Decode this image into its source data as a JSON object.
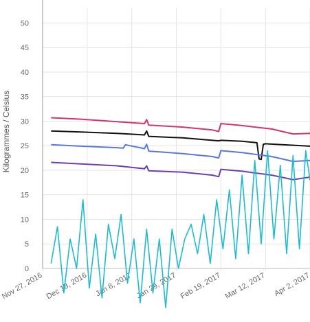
{
  "chart_data": {
    "type": "line",
    "ylabel": "Kilogrammes  / Celsius",
    "ylim": [
      0,
      53
    ],
    "yticks": [
      0,
      5,
      10,
      15,
      20,
      25,
      30,
      35,
      40,
      45,
      50
    ],
    "xlim": [
      "2016-11-27",
      "2017-04-02"
    ],
    "xticks": [
      "Nov 27, 2016",
      "Dec 18, 2016",
      "Jan 8, 2017",
      "Jan 29, 2017",
      "Feb 19, 2017",
      "Mar 12, 2017",
      "Apr 2, 2017"
    ],
    "grid": true,
    "legend": "none",
    "series": [
      {
        "color": "#d6336c",
        "x": [
          "2016-12-01",
          "2016-12-15",
          "2017-01-01",
          "2017-01-14",
          "2017-01-15",
          "2017-01-16",
          "2017-02-01",
          "2017-02-15",
          "2017-02-18",
          "2017-02-19",
          "2017-03-01",
          "2017-03-15",
          "2017-03-25",
          "2017-04-02"
        ],
        "values": [
          30.7,
          30.4,
          29.9,
          29.5,
          30.3,
          29.2,
          28.8,
          28.2,
          27.9,
          29.5,
          29.1,
          28.4,
          27.4,
          27.5
        ]
      },
      {
        "color": "#111111",
        "x": [
          "2016-12-01",
          "2016-12-15",
          "2017-01-01",
          "2017-01-14",
          "2017-01-15",
          "2017-01-16",
          "2017-02-01",
          "2017-02-15",
          "2017-02-18",
          "2017-02-19",
          "2017-03-01",
          "2017-03-08",
          "2017-03-09",
          "2017-03-10",
          "2017-03-11",
          "2017-03-12",
          "2017-03-20",
          "2017-04-02"
        ],
        "values": [
          28.0,
          27.8,
          27.5,
          27.2,
          28.0,
          26.9,
          26.6,
          26.1,
          26.0,
          26.1,
          25.9,
          25.6,
          22.3,
          22.2,
          25.3,
          25.4,
          25.2,
          24.9
        ]
      },
      {
        "color": "#5878dc",
        "x": [
          "2016-12-01",
          "2016-12-15",
          "2017-01-01",
          "2017-01-04",
          "2017-01-05",
          "2017-01-14",
          "2017-01-15",
          "2017-01-16",
          "2017-02-01",
          "2017-02-15",
          "2017-02-18",
          "2017-02-19",
          "2017-03-01",
          "2017-03-15",
          "2017-03-25",
          "2017-04-02"
        ],
        "values": [
          25.2,
          24.9,
          24.6,
          24.5,
          25.2,
          24.4,
          25.3,
          23.9,
          23.4,
          22.8,
          22.5,
          24.0,
          23.6,
          22.8,
          21.8,
          22.0
        ]
      },
      {
        "color": "#6a3fb0",
        "x": [
          "2016-12-01",
          "2016-12-15",
          "2017-01-01",
          "2017-01-14",
          "2017-01-15",
          "2017-01-16",
          "2017-02-01",
          "2017-02-15",
          "2017-02-18",
          "2017-02-19",
          "2017-03-01",
          "2017-03-15",
          "2017-03-25",
          "2017-04-02"
        ],
        "values": [
          21.6,
          21.3,
          20.9,
          20.3,
          20.9,
          19.9,
          19.6,
          19.0,
          18.7,
          20.2,
          19.8,
          19.0,
          18.1,
          18.6
        ]
      },
      {
        "color": "#1bbcd3",
        "x": [
          "2016-12-01",
          "2016-12-04",
          "2016-12-07",
          "2016-12-10",
          "2016-12-13",
          "2016-12-16",
          "2016-12-19",
          "2016-12-22",
          "2016-12-25",
          "2016-12-28",
          "2016-12-31",
          "2017-01-03",
          "2017-01-06",
          "2017-01-09",
          "2017-01-12",
          "2017-01-15",
          "2017-01-18",
          "2017-01-21",
          "2017-01-24",
          "2017-01-27",
          "2017-01-30",
          "2017-02-02",
          "2017-02-05",
          "2017-02-08",
          "2017-02-11",
          "2017-02-14",
          "2017-02-17",
          "2017-02-20",
          "2017-02-23",
          "2017-02-26",
          "2017-03-01",
          "2017-03-04",
          "2017-03-07",
          "2017-03-10",
          "2017-03-13",
          "2017-03-16",
          "2017-03-19",
          "2017-03-22",
          "2017-03-25",
          "2017-03-28",
          "2017-03-31",
          "2017-04-02"
        ],
        "values": [
          1,
          8.5,
          -5,
          6,
          0,
          14,
          -4,
          7,
          -6,
          9,
          2,
          11,
          -3,
          6,
          -7,
          8,
          -5,
          6,
          -8,
          8,
          0,
          6,
          9,
          3,
          11,
          1,
          14,
          4,
          16,
          2,
          19,
          3,
          22,
          5,
          24,
          6,
          21,
          3,
          23,
          4,
          24,
          18
        ]
      }
    ]
  }
}
